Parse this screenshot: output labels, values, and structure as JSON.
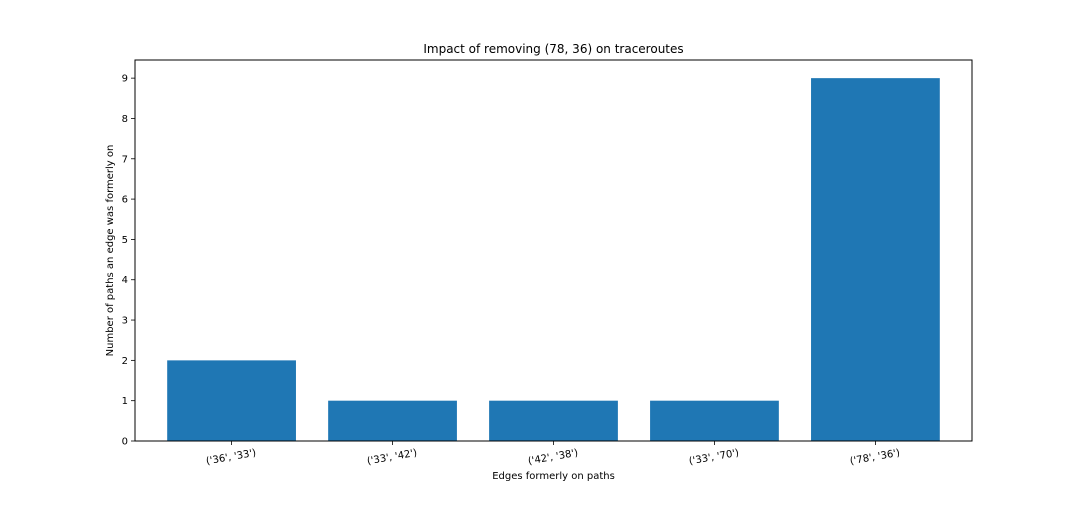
{
  "chart_data": {
    "type": "bar",
    "title": "Impact of removing (78, 36) on traceroutes",
    "xlabel": "Edges formerly on paths",
    "ylabel": "Number of paths an edge was formerly on",
    "categories": [
      "('36', '33')",
      "('33', '42')",
      "('42', '38')",
      "('33', '70')",
      "('78', '36')"
    ],
    "values": [
      2,
      1,
      1,
      1,
      9
    ],
    "ylim": [
      0,
      9.45
    ],
    "yticks": [
      0,
      1,
      2,
      3,
      4,
      5,
      6,
      7,
      8,
      9
    ],
    "bar_color": "#1f77b4",
    "grid": false,
    "legend": "none"
  }
}
